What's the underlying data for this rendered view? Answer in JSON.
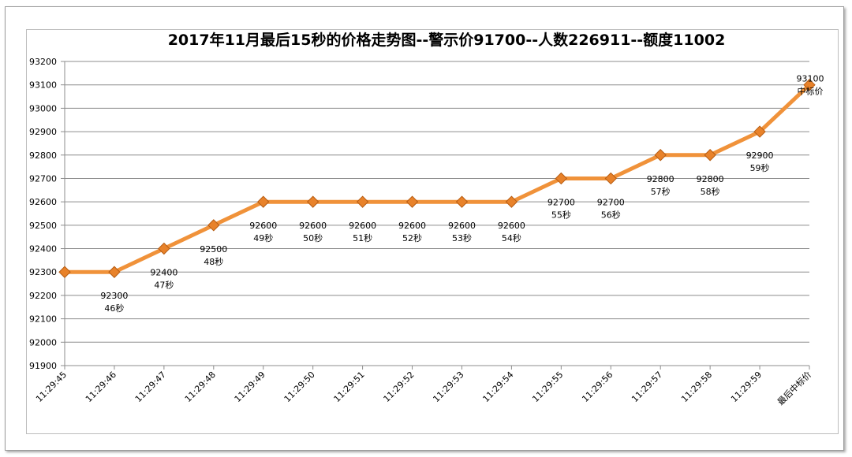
{
  "chart_data": {
    "type": "line",
    "title": "2017年11月最后15秒的价格走势图--警示价91700--人数226911--额度11002",
    "xlabel": "",
    "ylabel": "",
    "ylim": [
      91900,
      93200
    ],
    "ytick_step": 100,
    "grid": true,
    "legend": "none",
    "categories": [
      "11:29:45",
      "11:29:46",
      "11:29:47",
      "11:29:48",
      "11:29:49",
      "11:29:50",
      "11:29:51",
      "11:29:52",
      "11:29:53",
      "11:29:54",
      "11:29:55",
      "11:29:56",
      "11:29:57",
      "11:29:58",
      "11:29:59",
      "最后中标价"
    ],
    "series": [
      {
        "values": [
          92300,
          92300,
          92400,
          92500,
          92600,
          92600,
          92600,
          92600,
          92600,
          92600,
          92700,
          92700,
          92800,
          92800,
          92900,
          93100
        ]
      }
    ],
    "data_labels": [
      null,
      [
        "92300",
        "46秒"
      ],
      [
        "92400",
        "47秒"
      ],
      [
        "92500",
        "48秒"
      ],
      [
        "92600",
        "49秒"
      ],
      [
        "92600",
        "50秒"
      ],
      [
        "92600",
        "51秒"
      ],
      [
        "92600",
        "52秒"
      ],
      [
        "92600",
        "53秒"
      ],
      [
        "92600",
        "54秒"
      ],
      [
        "92700",
        "55秒"
      ],
      [
        "92700",
        "56秒"
      ],
      [
        "92800",
        "57秒"
      ],
      [
        "92800",
        "58秒"
      ],
      [
        "92900",
        "59秒"
      ],
      [
        "93100",
        "中标价"
      ]
    ],
    "colors": {
      "line": "#f0923a",
      "marker": "#e8822a",
      "grid": "#8c8c8c",
      "axis": "#8c8c8c"
    }
  }
}
